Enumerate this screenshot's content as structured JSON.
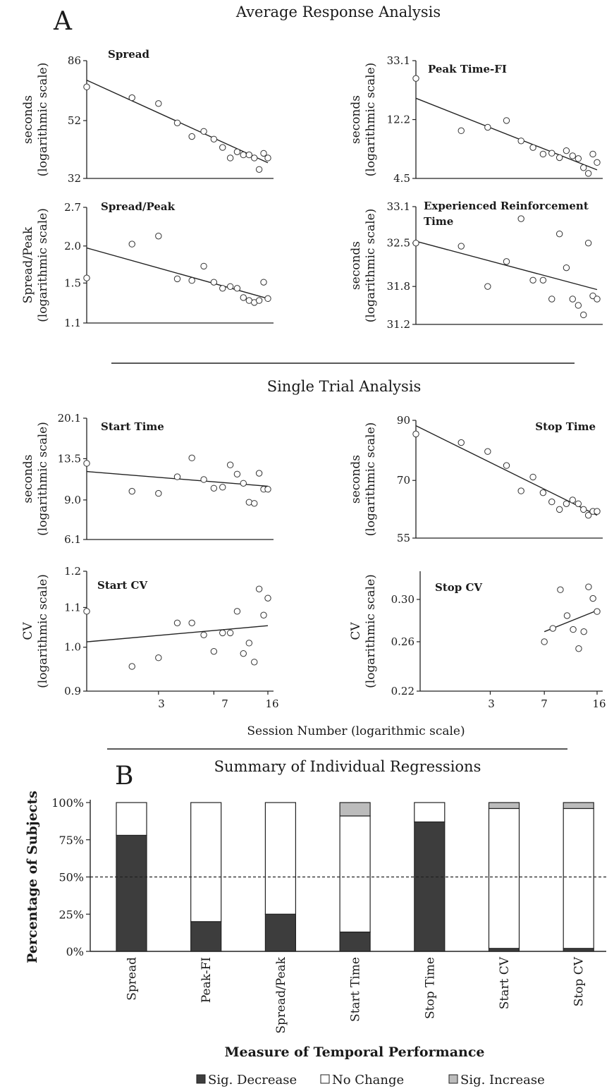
{
  "figure": {
    "panel_a_label": "A",
    "panel_b_label": "B",
    "section_average": "Average Response Analysis",
    "section_single": "Single Trial Analysis",
    "section_summary": "Summary of Individual Regressions",
    "session_axis_label": "Session Number (logarithmic scale)",
    "session_ticks": [
      "3",
      "7",
      "16"
    ]
  },
  "chart_data": [
    {
      "type": "scatter",
      "title": "Spread",
      "ylabel": [
        "seconds",
        "(logarithmic scale)"
      ],
      "y_scale": "log",
      "x_scale": "log",
      "ylim": [
        32,
        86
      ],
      "yticks": [
        "86",
        "52",
        "32"
      ],
      "points": [
        [
          1,
          69
        ],
        [
          2,
          63
        ],
        [
          3,
          60
        ],
        [
          4,
          51
        ],
        [
          5,
          45.5
        ],
        [
          6,
          47.5
        ],
        [
          7,
          44.5
        ],
        [
          8,
          41.5
        ],
        [
          9,
          38
        ],
        [
          10,
          40
        ],
        [
          11,
          39
        ],
        [
          12,
          39
        ],
        [
          13,
          38
        ],
        [
          14,
          34.5
        ],
        [
          15,
          39.5
        ],
        [
          16,
          38
        ]
      ],
      "fit": [
        [
          1,
          73
        ],
        [
          16,
          36.5
        ]
      ]
    },
    {
      "type": "scatter",
      "title": "Peak Time-FI",
      "ylabel": [
        "seconds",
        "(logarithmic scale)"
      ],
      "y_scale": "log",
      "x_scale": "log",
      "ylim": [
        4.5,
        33.1
      ],
      "yticks": [
        "33.1",
        "12.2",
        "4.5"
      ],
      "points": [
        [
          1,
          24.5
        ],
        [
          2,
          10.1
        ],
        [
          3,
          10.7
        ],
        [
          4,
          12
        ],
        [
          5,
          8.5
        ],
        [
          6,
          7.6
        ],
        [
          7,
          6.8
        ],
        [
          8,
          6.9
        ],
        [
          9,
          6.4
        ],
        [
          10,
          7.2
        ],
        [
          11,
          6.6
        ],
        [
          12,
          6.3
        ],
        [
          13,
          5.4
        ],
        [
          14,
          4.9
        ],
        [
          15,
          6.8
        ],
        [
          16,
          5.9
        ]
      ],
      "fit": [
        [
          1,
          17.5
        ],
        [
          16,
          5.2
        ]
      ]
    },
    {
      "type": "scatter",
      "title": "Spread/Peak",
      "ylabel": [
        "Spread/Peak",
        "(logarithmic scale)"
      ],
      "y_scale": "log",
      "x_scale": "log",
      "ylim": [
        1.1,
        2.7
      ],
      "yticks": [
        "2.7",
        "2.0",
        "1.5",
        "1.1"
      ],
      "points": [
        [
          1,
          1.56
        ],
        [
          2,
          2.03
        ],
        [
          3,
          2.16
        ],
        [
          4,
          1.55
        ],
        [
          5,
          1.53
        ],
        [
          6,
          1.71
        ],
        [
          7,
          1.51
        ],
        [
          8,
          1.44
        ],
        [
          9,
          1.46
        ],
        [
          10,
          1.44
        ],
        [
          11,
          1.34
        ],
        [
          12,
          1.31
        ],
        [
          13,
          1.29
        ],
        [
          14,
          1.31
        ],
        [
          15,
          1.51
        ],
        [
          16,
          1.33
        ]
      ],
      "fit": [
        [
          1,
          1.97
        ],
        [
          16,
          1.33
        ]
      ]
    },
    {
      "type": "scatter",
      "title": "Experienced Reinforcement Time",
      "ylabel": [
        "seconds",
        "(logarithmic scale)"
      ],
      "y_scale": "log",
      "x_scale": "log",
      "ylim": [
        31.2,
        33.1
      ],
      "yticks": [
        "33.1",
        "32.5",
        "31.8",
        "31.2"
      ],
      "points": [
        [
          1,
          32.5
        ],
        [
          2,
          32.45
        ],
        [
          3,
          31.8
        ],
        [
          4,
          32.2
        ],
        [
          5,
          32.9
        ],
        [
          6,
          31.9
        ],
        [
          7,
          31.9
        ],
        [
          8,
          31.6
        ],
        [
          9,
          32.65
        ],
        [
          10,
          32.1
        ],
        [
          11,
          31.6
        ],
        [
          12,
          31.5
        ],
        [
          13,
          31.35
        ],
        [
          14,
          32.5
        ],
        [
          15,
          31.65
        ],
        [
          16,
          31.6
        ]
      ],
      "fit": [
        [
          1,
          32.53
        ],
        [
          16,
          31.75
        ]
      ]
    },
    {
      "type": "scatter",
      "title": "Start Time",
      "ylabel": [
        "seconds",
        "(logarithmic scale)"
      ],
      "y_scale": "log",
      "x_scale": "log",
      "ylim": [
        6.1,
        20.1
      ],
      "yticks": [
        "20.1",
        "13.5",
        "9.0",
        "6.1"
      ],
      "points": [
        [
          1,
          12.9
        ],
        [
          2,
          9.8
        ],
        [
          3,
          9.6
        ],
        [
          4,
          11.3
        ],
        [
          5,
          13.6
        ],
        [
          6,
          11
        ],
        [
          7,
          10.1
        ],
        [
          8,
          10.2
        ],
        [
          9,
          12.7
        ],
        [
          10,
          11.6
        ],
        [
          11,
          10.6
        ],
        [
          12,
          8.8
        ],
        [
          13,
          8.7
        ],
        [
          14,
          11.7
        ],
        [
          15,
          10
        ],
        [
          16,
          10
        ]
      ],
      "fit": [
        [
          1,
          11.9
        ],
        [
          16,
          10.3
        ]
      ]
    },
    {
      "type": "scatter",
      "title": "Stop Time",
      "ylabel": [
        "seconds",
        "(logarithmic scale)"
      ],
      "y_scale": "log",
      "x_scale": "log",
      "ylim": [
        55,
        90
      ],
      "yticks": [
        "90",
        "70",
        "55"
      ],
      "points": [
        [
          1,
          85
        ],
        [
          2,
          82
        ],
        [
          3,
          79
        ],
        [
          4,
          74.5
        ],
        [
          5,
          67
        ],
        [
          6,
          71
        ],
        [
          7,
          66.5
        ],
        [
          8,
          64
        ],
        [
          9,
          62
        ],
        [
          10,
          63.5
        ],
        [
          11,
          64.5
        ],
        [
          12,
          63.5
        ],
        [
          13,
          62
        ],
        [
          14,
          60.5
        ],
        [
          15,
          61.5
        ],
        [
          16,
          61.5
        ]
      ],
      "fit": [
        [
          1,
          88
        ],
        [
          16,
          60.5
        ]
      ]
    },
    {
      "type": "scatter",
      "title": "Start CV",
      "ylabel": [
        "CV",
        "(logarithmic scale)"
      ],
      "y_scale": "log",
      "x_scale": "log",
      "ylim": [
        0.9,
        1.2
      ],
      "yticks": [
        "1.2",
        "1.1",
        "1.0",
        "0.9"
      ],
      "points": [
        [
          1,
          1.09
        ],
        [
          2,
          0.955
        ],
        [
          3,
          0.975
        ],
        [
          4,
          1.06
        ],
        [
          5,
          1.06
        ],
        [
          6,
          1.03
        ],
        [
          7,
          0.99
        ],
        [
          8,
          1.035
        ],
        [
          9,
          1.035
        ],
        [
          10,
          1.09
        ],
        [
          11,
          0.985
        ],
        [
          12,
          1.01
        ],
        [
          13,
          0.965
        ],
        [
          14,
          1.15
        ],
        [
          15,
          1.08
        ],
        [
          16,
          1.125
        ]
      ],
      "fit": [
        [
          1,
          1.013
        ],
        [
          16,
          1.053
        ]
      ]
    },
    {
      "type": "scatter",
      "title": "Stop CV",
      "ylabel": [
        "CV",
        "(logarithmic scale)"
      ],
      "y_scale": "log",
      "x_scale": "log",
      "ylim": [
        0.22,
        0.33
      ],
      "yticks": [
        "0.30",
        "0.26",
        "0.22"
      ],
      "points": [
        [
          7,
          0.26
        ],
        [
          8,
          0.272
        ],
        [
          9,
          0.31
        ],
        [
          10,
          0.284
        ],
        [
          11,
          0.271
        ],
        [
          12,
          0.254
        ],
        [
          13,
          0.269
        ],
        [
          14,
          0.313
        ],
        [
          15,
          0.301
        ],
        [
          16,
          0.288
        ]
      ],
      "fit": [
        [
          7,
          0.269
        ],
        [
          16,
          0.289
        ]
      ]
    },
    {
      "type": "bar",
      "stacked": true,
      "title": "Summary of Individual Regressions",
      "xlabel": "Measure of Temporal Performance",
      "ylabel": "Percentage of Subjects",
      "ylim": [
        0,
        100
      ],
      "yticks": [
        "100%",
        "75%",
        "50%",
        "25%",
        "0%"
      ],
      "reference_line": 50,
      "categories": [
        "Spread",
        "Peak-FI",
        "Spread/Peak",
        "Start Time",
        "Stop Time",
        "Start CV",
        "Stop CV"
      ],
      "series": [
        {
          "name": "Sig. Decrease",
          "color": "#3d3d3d",
          "values": [
            78,
            20,
            25,
            13,
            87,
            2,
            2
          ]
        },
        {
          "name": "No Change",
          "color": "#ffffff",
          "values": [
            22,
            80,
            75,
            78,
            13,
            94,
            94
          ]
        },
        {
          "name": "Sig. Increase",
          "color": "#bcbcbc",
          "values": [
            0,
            0,
            0,
            9,
            0,
            4,
            4
          ]
        }
      ],
      "legend_placement": "bottom"
    }
  ]
}
